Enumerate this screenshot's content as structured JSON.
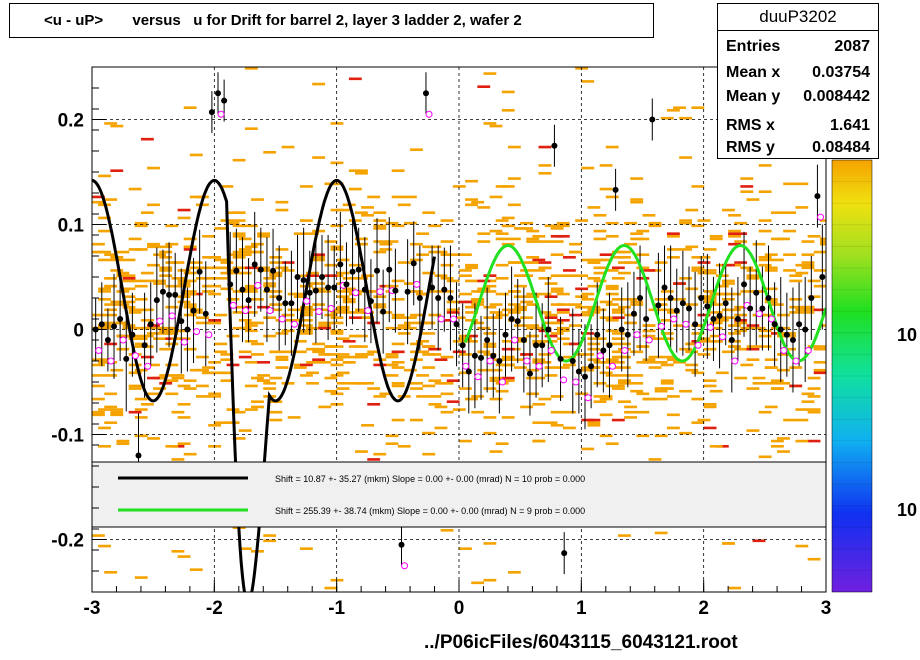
{
  "header": {
    "title": "<u - uP>       versus   u for Drift for barrel 2, layer 3 ladder 2, wafer 2"
  },
  "stats": {
    "name": "duuP3202",
    "rows": [
      {
        "key": "Entries",
        "value": "2087"
      },
      {
        "key": "Mean x",
        "value": "0.03754"
      },
      {
        "key": "Mean y",
        "value": "0.008442"
      },
      {
        "key": "RMS x",
        "value": "1.641"
      },
      {
        "key": "RMS y",
        "value": "0.08484"
      }
    ]
  },
  "footer": {
    "filename": "../P06icFiles/6043115_6043121.root"
  },
  "legend": {
    "entries": [
      {
        "color": "#000000",
        "text": "Shift =    10.87 +- 35.27 (mkm) Slope =     0.00 +- 0.00 (mrad)  N = 10 prob = 0.000"
      },
      {
        "color": "#00e000",
        "text": "Shift =    255.39 +- 38.74 (mkm) Slope =     0.00 +- 0.00 (mrad)  N = 9 prob = 0.000"
      }
    ]
  },
  "colors": {
    "accent_orange": "#f5a300",
    "accent_red": "#e02010",
    "fit_black": "#000000",
    "fit_green": "#20e020",
    "profile_marker": "#ff00ff"
  },
  "chart_data": {
    "type": "scatter",
    "xlabel": "",
    "ylabel": "",
    "xlim": [
      -3,
      3
    ],
    "ylim": [
      -0.25,
      0.25
    ],
    "x_ticks": [
      -3,
      -2,
      -1,
      0,
      1,
      2,
      3
    ],
    "x_tick_labels": [
      "-3",
      "-2",
      "-1",
      "0",
      "1",
      "2",
      "3"
    ],
    "y_ticks": [
      -0.2,
      -0.1,
      0,
      0.1,
      0.2
    ],
    "y_tick_labels": [
      "-0.2",
      "-0.1",
      "0",
      "0.1",
      "0.2"
    ],
    "grid": true,
    "z_scale": "log",
    "z_tick_labels": [
      "10",
      "10"
    ],
    "fit_black": {
      "x_range": [
        -3.0,
        -0.2
      ],
      "offset": 0.037,
      "amplitude": 0.105,
      "period": 1.0,
      "phase_x": -2.0,
      "decay_x": [
        -1.9,
        -1.55
      ],
      "decay_y_at": -0.26
    },
    "fit_green": {
      "x_range": [
        0.05,
        3.0
      ],
      "offset": 0.025,
      "amplitude": 0.055,
      "period": 0.95,
      "phase_x": 0.4
    },
    "profile_points": [
      {
        "x": -2.97,
        "y": 0.0,
        "err": 0.03
      },
      {
        "x": -2.92,
        "y": 0.005,
        "err": 0.04
      },
      {
        "x": -2.87,
        "y": -0.01,
        "err": 0.03
      },
      {
        "x": -2.82,
        "y": 0.003,
        "err": 0.05
      },
      {
        "x": -2.77,
        "y": 0.01,
        "err": 0.04
      },
      {
        "x": -2.72,
        "y": -0.028,
        "err": 0.05
      },
      {
        "x": -2.67,
        "y": -0.005,
        "err": 0.04
      },
      {
        "x": -2.62,
        "y": -0.12,
        "err": 0.04
      },
      {
        "x": -2.57,
        "y": -0.015,
        "err": 0.05
      },
      {
        "x": -2.52,
        "y": 0.005,
        "err": 0.04
      },
      {
        "x": -2.47,
        "y": 0.028,
        "err": 0.05
      },
      {
        "x": -2.42,
        "y": 0.036,
        "err": 0.04
      },
      {
        "x": -2.37,
        "y": 0.033,
        "err": 0.05
      },
      {
        "x": -2.32,
        "y": 0.033,
        "err": 0.04
      },
      {
        "x": -2.27,
        "y": 0.008,
        "err": 0.05
      },
      {
        "x": -2.22,
        "y": 0.0,
        "err": 0.04
      },
      {
        "x": -2.17,
        "y": 0.018,
        "err": 0.05
      },
      {
        "x": -2.12,
        "y": 0.055,
        "err": 0.04
      },
      {
        "x": -2.07,
        "y": 0.015,
        "err": 0.05
      },
      {
        "x": -2.02,
        "y": 0.207,
        "err": 0.02
      },
      {
        "x": -1.97,
        "y": 0.225,
        "err": 0.02
      },
      {
        "x": -1.92,
        "y": 0.218,
        "err": 0.02
      },
      {
        "x": -1.87,
        "y": 0.043,
        "err": 0.05
      },
      {
        "x": -1.82,
        "y": 0.056,
        "err": 0.04
      },
      {
        "x": -1.77,
        "y": 0.038,
        "err": 0.05
      },
      {
        "x": -1.72,
        "y": 0.028,
        "err": 0.04
      },
      {
        "x": -1.67,
        "y": 0.062,
        "err": 0.05
      },
      {
        "x": -1.62,
        "y": 0.057,
        "err": 0.04
      },
      {
        "x": -1.57,
        "y": 0.038,
        "err": 0.05
      },
      {
        "x": -1.52,
        "y": 0.056,
        "err": 0.04
      },
      {
        "x": -1.47,
        "y": 0.03,
        "err": 0.05
      },
      {
        "x": -1.42,
        "y": 0.025,
        "err": 0.04
      },
      {
        "x": -1.37,
        "y": 0.025,
        "err": 0.05
      },
      {
        "x": -1.32,
        "y": 0.05,
        "err": 0.04
      },
      {
        "x": -1.27,
        "y": 0.047,
        "err": 0.05
      },
      {
        "x": -1.22,
        "y": 0.035,
        "err": 0.04
      },
      {
        "x": -1.17,
        "y": 0.037,
        "err": 0.05
      },
      {
        "x": -1.12,
        "y": 0.05,
        "err": 0.04
      },
      {
        "x": -1.07,
        "y": 0.04,
        "err": 0.05
      },
      {
        "x": -1.02,
        "y": 0.04,
        "err": 0.04
      },
      {
        "x": -0.97,
        "y": 0.062,
        "err": 0.05
      },
      {
        "x": -0.92,
        "y": 0.043,
        "err": 0.04
      },
      {
        "x": -0.87,
        "y": 0.055,
        "err": 0.05
      },
      {
        "x": -0.82,
        "y": 0.057,
        "err": 0.04
      },
      {
        "x": -0.77,
        "y": 0.038,
        "err": 0.05
      },
      {
        "x": -0.72,
        "y": 0.027,
        "err": 0.04
      },
      {
        "x": -0.67,
        "y": 0.056,
        "err": 0.05
      },
      {
        "x": -0.62,
        "y": 0.017,
        "err": 0.04
      },
      {
        "x": -0.57,
        "y": 0.057,
        "err": 0.05
      },
      {
        "x": -0.52,
        "y": 0.037,
        "err": 0.04
      },
      {
        "x": -0.47,
        "y": -0.205,
        "err": 0.02
      },
      {
        "x": -0.42,
        "y": 0.036,
        "err": 0.05
      },
      {
        "x": -0.37,
        "y": 0.063,
        "err": 0.04
      },
      {
        "x": -0.32,
        "y": 0.03,
        "err": 0.05
      },
      {
        "x": -0.27,
        "y": 0.225,
        "err": 0.02
      },
      {
        "x": -0.22,
        "y": 0.04,
        "err": 0.04
      },
      {
        "x": -0.17,
        "y": 0.03,
        "err": 0.05
      },
      {
        "x": -0.12,
        "y": 0.038,
        "err": 0.04
      },
      {
        "x": -0.07,
        "y": 0.03,
        "err": 0.05
      },
      {
        "x": -0.02,
        "y": 0.005,
        "err": 0.04
      },
      {
        "x": 0.03,
        "y": -0.015,
        "err": 0.04
      },
      {
        "x": 0.08,
        "y": -0.04,
        "err": 0.04
      },
      {
        "x": 0.13,
        "y": -0.025,
        "err": 0.05
      },
      {
        "x": 0.18,
        "y": -0.027,
        "err": 0.04
      },
      {
        "x": 0.23,
        "y": -0.01,
        "err": 0.05
      },
      {
        "x": 0.28,
        "y": -0.025,
        "err": 0.04
      },
      {
        "x": 0.33,
        "y": -0.03,
        "err": 0.05
      },
      {
        "x": 0.38,
        "y": -0.005,
        "err": 0.04
      },
      {
        "x": 0.43,
        "y": 0.01,
        "err": 0.05
      },
      {
        "x": 0.48,
        "y": 0.008,
        "err": 0.04
      },
      {
        "x": 0.53,
        "y": -0.01,
        "err": 0.05
      },
      {
        "x": 0.58,
        "y": -0.042,
        "err": 0.04
      },
      {
        "x": 0.63,
        "y": -0.015,
        "err": 0.05
      },
      {
        "x": 0.68,
        "y": -0.015,
        "err": 0.04
      },
      {
        "x": 0.73,
        "y": 0.0,
        "err": 0.05
      },
      {
        "x": 0.78,
        "y": 0.175,
        "err": 0.02
      },
      {
        "x": 0.83,
        "y": -0.028,
        "err": 0.04
      },
      {
        "x": 0.86,
        "y": -0.213,
        "err": 0.02
      },
      {
        "x": 0.93,
        "y": -0.03,
        "err": 0.05
      },
      {
        "x": 0.98,
        "y": -0.04,
        "err": 0.04
      },
      {
        "x": 1.03,
        "y": -0.045,
        "err": 0.05
      },
      {
        "x": 1.08,
        "y": -0.035,
        "err": 0.04
      },
      {
        "x": 1.13,
        "y": -0.005,
        "err": 0.05
      },
      {
        "x": 1.18,
        "y": -0.02,
        "err": 0.04
      },
      {
        "x": 1.23,
        "y": -0.015,
        "err": 0.05
      },
      {
        "x": 1.28,
        "y": 0.133,
        "err": 0.02
      },
      {
        "x": 1.33,
        "y": 0.0,
        "err": 0.04
      },
      {
        "x": 1.38,
        "y": -0.005,
        "err": 0.05
      },
      {
        "x": 1.43,
        "y": 0.015,
        "err": 0.04
      },
      {
        "x": 1.48,
        "y": 0.03,
        "err": 0.05
      },
      {
        "x": 1.53,
        "y": 0.01,
        "err": 0.04
      },
      {
        "x": 1.58,
        "y": 0.2,
        "err": 0.02
      },
      {
        "x": 1.63,
        "y": 0.023,
        "err": 0.05
      },
      {
        "x": 1.68,
        "y": 0.04,
        "err": 0.04
      },
      {
        "x": 1.73,
        "y": 0.03,
        "err": 0.05
      },
      {
        "x": 1.78,
        "y": 0.018,
        "err": 0.04
      },
      {
        "x": 1.83,
        "y": 0.025,
        "err": 0.05
      },
      {
        "x": 1.88,
        "y": 0.02,
        "err": 0.04
      },
      {
        "x": 1.93,
        "y": 0.005,
        "err": 0.05
      },
      {
        "x": 1.98,
        "y": 0.03,
        "err": 0.04
      },
      {
        "x": 2.03,
        "y": 0.022,
        "err": 0.05
      },
      {
        "x": 2.08,
        "y": 0.01,
        "err": 0.04
      },
      {
        "x": 2.13,
        "y": 0.013,
        "err": 0.05
      },
      {
        "x": 2.18,
        "y": 0.025,
        "err": 0.04
      },
      {
        "x": 2.23,
        "y": -0.01,
        "err": 0.05
      },
      {
        "x": 2.28,
        "y": 0.01,
        "err": 0.04
      },
      {
        "x": 2.33,
        "y": 0.043,
        "err": 0.05
      },
      {
        "x": 2.38,
        "y": 0.02,
        "err": 0.04
      },
      {
        "x": 2.43,
        "y": 0.035,
        "err": 0.05
      },
      {
        "x": 2.48,
        "y": 0.02,
        "err": 0.04
      },
      {
        "x": 2.53,
        "y": 0.03,
        "err": 0.05
      },
      {
        "x": 2.58,
        "y": 0.005,
        "err": 0.04
      },
      {
        "x": 2.63,
        "y": 0.0,
        "err": 0.05
      },
      {
        "x": 2.68,
        "y": -0.005,
        "err": 0.04
      },
      {
        "x": 2.73,
        "y": -0.01,
        "err": 0.05
      },
      {
        "x": 2.78,
        "y": 0.005,
        "err": 0.04
      },
      {
        "x": 2.83,
        "y": 0.0,
        "err": 0.05
      },
      {
        "x": 2.88,
        "y": 0.03,
        "err": 0.04
      },
      {
        "x": 2.93,
        "y": 0.127,
        "err": 0.03
      },
      {
        "x": 2.97,
        "y": 0.05,
        "err": 0.05
      }
    ]
  }
}
